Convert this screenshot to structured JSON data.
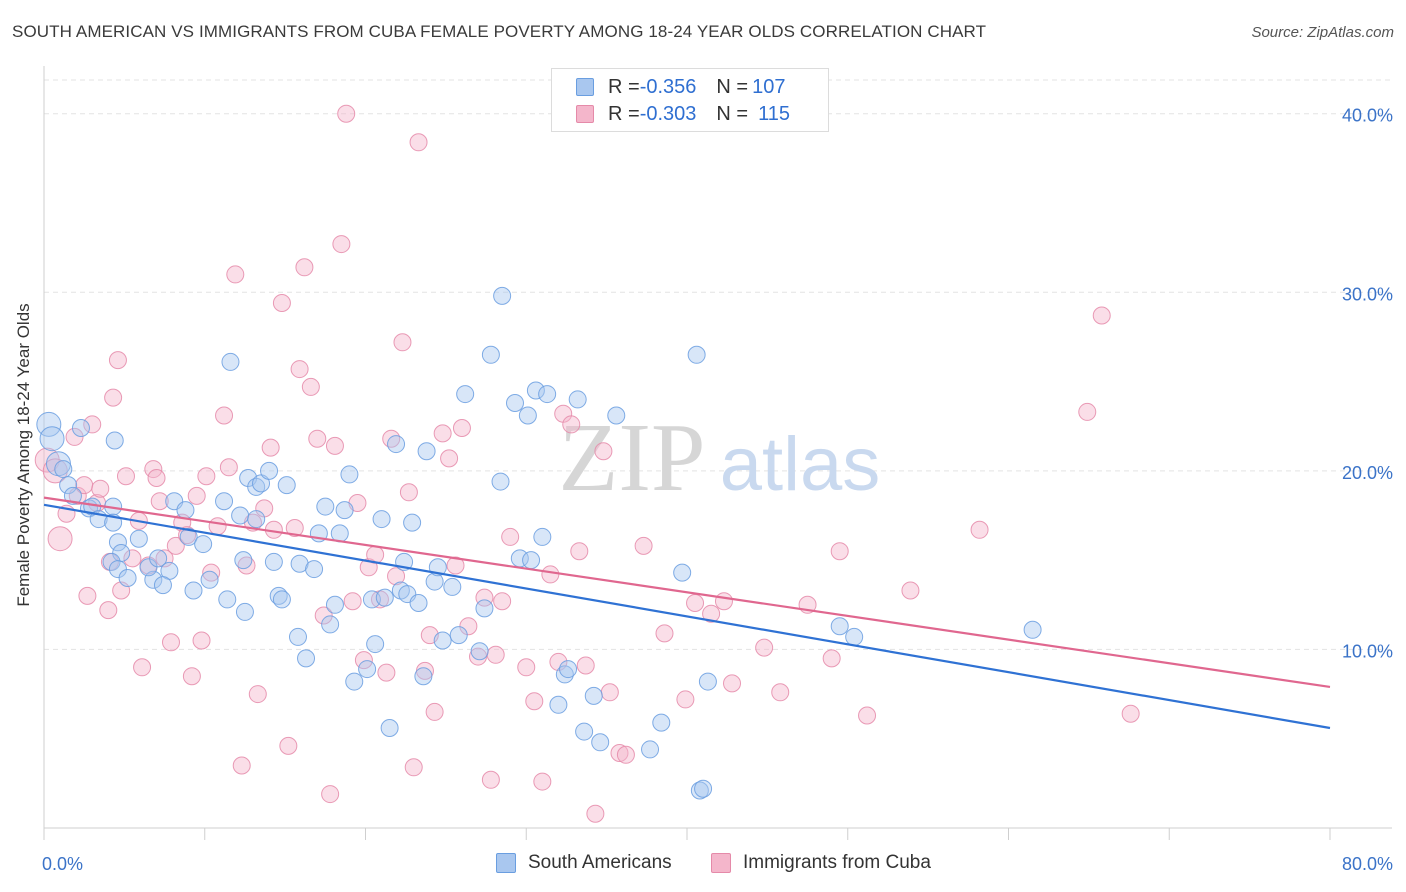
{
  "header": {
    "title": "SOUTH AMERICAN VS IMMIGRANTS FROM CUBA FEMALE POVERTY AMONG 18-24 YEAR OLDS CORRELATION CHART",
    "source": "Source: ZipAtlas.com"
  },
  "legend": {
    "rows": [
      {
        "r_label": "R = ",
        "r_value": "-0.356",
        "n_label": "N = ",
        "n_value": "107"
      },
      {
        "r_label": "R = ",
        "r_value": "-0.303",
        "n_label": "N = ",
        "n_value": "115"
      }
    ]
  },
  "colors": {
    "blue_fill": "#a9c7ef",
    "blue_stroke": "#6a9ee0",
    "blue_line": "#2f72d4",
    "pink_fill": "#f4b6cb",
    "pink_stroke": "#e58aa9",
    "pink_line": "#e0678f",
    "axis_text": "#3b73c8",
    "grid": "#e3e3e3"
  },
  "watermark": {
    "part1": "ZIP",
    "part2": "atlas"
  },
  "chart_data": {
    "type": "scatter",
    "title": "SOUTH AMERICAN VS IMMIGRANTS FROM CUBA FEMALE POVERTY AMONG 18-24 YEAR OLDS CORRELATION CHART",
    "xlabel": "",
    "ylabel": "Female Poverty Among 18-24 Year Olds",
    "xlim": [
      0,
      80
    ],
    "ylim": [
      0,
      42
    ],
    "x_tick_labels": [
      "0.0%",
      "80.0%"
    ],
    "y_ticks": [
      10,
      20,
      30,
      40
    ],
    "y_tick_labels": [
      "10.0%",
      "20.0%",
      "30.0%",
      "40.0%"
    ],
    "grid": true,
    "legend_position": "top-center",
    "series": [
      {
        "name": "South Americans",
        "r": -0.356,
        "n": 107,
        "trend": {
          "x": [
            0,
            80
          ],
          "y": [
            18.1,
            5.6
          ]
        },
        "points": [
          [
            0.3,
            22.6
          ],
          [
            0.5,
            21.8
          ],
          [
            0.9,
            20.4
          ],
          [
            1.2,
            20.1
          ],
          [
            1.5,
            19.2
          ],
          [
            1.8,
            18.6
          ],
          [
            2.3,
            22.4
          ],
          [
            2.8,
            17.9
          ],
          [
            3.0,
            18.0
          ],
          [
            3.4,
            17.3
          ],
          [
            4.4,
            21.7
          ],
          [
            4.3,
            18.0
          ],
          [
            4.3,
            17.1
          ],
          [
            4.6,
            16.0
          ],
          [
            4.8,
            15.4
          ],
          [
            4.2,
            14.9
          ],
          [
            4.6,
            14.5
          ],
          [
            5.2,
            14.0
          ],
          [
            5.9,
            16.2
          ],
          [
            6.8,
            13.9
          ],
          [
            6.5,
            14.6
          ],
          [
            7.1,
            15.1
          ],
          [
            7.8,
            14.4
          ],
          [
            7.4,
            13.6
          ],
          [
            8.1,
            18.3
          ],
          [
            8.8,
            17.8
          ],
          [
            9.0,
            16.3
          ],
          [
            9.3,
            13.3
          ],
          [
            9.9,
            15.9
          ],
          [
            10.3,
            13.9
          ],
          [
            11.2,
            18.3
          ],
          [
            11.4,
            12.8
          ],
          [
            11.6,
            26.1
          ],
          [
            12.2,
            17.5
          ],
          [
            12.4,
            15.0
          ],
          [
            12.5,
            12.1
          ],
          [
            12.7,
            19.6
          ],
          [
            13.2,
            19.1
          ],
          [
            13.2,
            17.3
          ],
          [
            13.5,
            19.3
          ],
          [
            14.0,
            20.0
          ],
          [
            14.3,
            14.9
          ],
          [
            14.6,
            13.0
          ],
          [
            14.8,
            12.8
          ],
          [
            15.1,
            19.2
          ],
          [
            15.8,
            10.7
          ],
          [
            15.9,
            14.8
          ],
          [
            16.3,
            9.5
          ],
          [
            16.8,
            14.5
          ],
          [
            17.1,
            16.5
          ],
          [
            17.5,
            18.0
          ],
          [
            17.8,
            11.4
          ],
          [
            18.1,
            12.5
          ],
          [
            18.4,
            16.5
          ],
          [
            18.7,
            17.8
          ],
          [
            19.0,
            19.8
          ],
          [
            19.3,
            8.2
          ],
          [
            20.1,
            8.9
          ],
          [
            20.4,
            12.8
          ],
          [
            20.6,
            10.3
          ],
          [
            21.0,
            17.3
          ],
          [
            21.2,
            12.9
          ],
          [
            21.5,
            5.6
          ],
          [
            21.9,
            21.5
          ],
          [
            22.2,
            13.3
          ],
          [
            22.4,
            14.9
          ],
          [
            22.6,
            13.1
          ],
          [
            22.9,
            17.1
          ],
          [
            23.3,
            12.6
          ],
          [
            23.6,
            8.5
          ],
          [
            23.8,
            21.1
          ],
          [
            24.3,
            13.8
          ],
          [
            24.5,
            14.6
          ],
          [
            24.8,
            10.5
          ],
          [
            25.4,
            13.5
          ],
          [
            25.8,
            10.8
          ],
          [
            26.2,
            24.3
          ],
          [
            27.1,
            9.9
          ],
          [
            27.4,
            12.3
          ],
          [
            27.8,
            26.5
          ],
          [
            28.4,
            19.4
          ],
          [
            28.5,
            29.8
          ],
          [
            29.3,
            23.8
          ],
          [
            29.6,
            15.1
          ],
          [
            30.1,
            23.1
          ],
          [
            30.3,
            15.0
          ],
          [
            30.6,
            24.5
          ],
          [
            31.0,
            16.3
          ],
          [
            31.3,
            24.3
          ],
          [
            32.0,
            6.9
          ],
          [
            32.4,
            8.6
          ],
          [
            32.6,
            8.9
          ],
          [
            33.2,
            24.0
          ],
          [
            33.6,
            5.4
          ],
          [
            34.2,
            7.4
          ],
          [
            34.6,
            4.8
          ],
          [
            35.6,
            23.1
          ],
          [
            37.7,
            4.4
          ],
          [
            38.4,
            5.9
          ],
          [
            39.7,
            14.3
          ],
          [
            40.6,
            26.5
          ],
          [
            40.8,
            2.1
          ],
          [
            41.0,
            2.2
          ],
          [
            41.3,
            8.2
          ],
          [
            49.5,
            11.3
          ],
          [
            50.4,
            10.7
          ],
          [
            61.5,
            11.1
          ]
        ]
      },
      {
        "name": "Immigrants from Cuba",
        "r": -0.303,
        "n": 115,
        "trend": {
          "x": [
            0,
            80
          ],
          "y": [
            18.5,
            7.9
          ]
        },
        "points": [
          [
            0.2,
            20.6
          ],
          [
            0.7,
            20.0
          ],
          [
            1.0,
            16.2
          ],
          [
            1.4,
            17.6
          ],
          [
            1.9,
            21.9
          ],
          [
            2.1,
            18.6
          ],
          [
            2.5,
            19.2
          ],
          [
            2.7,
            13.0
          ],
          [
            3.0,
            22.6
          ],
          [
            3.3,
            18.2
          ],
          [
            3.5,
            19.0
          ],
          [
            4.0,
            12.2
          ],
          [
            4.1,
            14.9
          ],
          [
            4.3,
            24.1
          ],
          [
            4.6,
            26.2
          ],
          [
            4.8,
            13.3
          ],
          [
            5.1,
            19.7
          ],
          [
            5.5,
            15.1
          ],
          [
            5.9,
            17.2
          ],
          [
            6.1,
            9.0
          ],
          [
            6.5,
            14.7
          ],
          [
            6.8,
            20.1
          ],
          [
            7.0,
            19.6
          ],
          [
            7.2,
            18.3
          ],
          [
            7.5,
            15.1
          ],
          [
            7.9,
            10.4
          ],
          [
            8.2,
            15.8
          ],
          [
            8.6,
            17.1
          ],
          [
            8.9,
            16.4
          ],
          [
            9.2,
            8.5
          ],
          [
            9.5,
            18.6
          ],
          [
            9.8,
            10.5
          ],
          [
            10.1,
            19.7
          ],
          [
            10.4,
            14.3
          ],
          [
            10.8,
            16.9
          ],
          [
            11.2,
            23.1
          ],
          [
            11.5,
            20.2
          ],
          [
            11.9,
            31.0
          ],
          [
            12.3,
            3.5
          ],
          [
            12.6,
            14.7
          ],
          [
            13.0,
            17.1
          ],
          [
            13.3,
            7.5
          ],
          [
            13.7,
            17.9
          ],
          [
            14.1,
            21.3
          ],
          [
            14.3,
            16.7
          ],
          [
            14.8,
            29.4
          ],
          [
            15.2,
            4.6
          ],
          [
            15.6,
            16.8
          ],
          [
            15.9,
            25.7
          ],
          [
            16.2,
            31.4
          ],
          [
            16.6,
            24.7
          ],
          [
            17.0,
            21.8
          ],
          [
            17.4,
            11.9
          ],
          [
            17.8,
            1.9
          ],
          [
            18.1,
            21.4
          ],
          [
            18.5,
            32.7
          ],
          [
            18.8,
            40.0
          ],
          [
            19.2,
            12.7
          ],
          [
            19.5,
            18.2
          ],
          [
            19.9,
            9.4
          ],
          [
            20.2,
            14.6
          ],
          [
            20.6,
            15.3
          ],
          [
            20.9,
            12.8
          ],
          [
            21.3,
            8.7
          ],
          [
            21.6,
            21.8
          ],
          [
            21.9,
            14.1
          ],
          [
            22.3,
            27.2
          ],
          [
            22.7,
            18.8
          ],
          [
            23.0,
            3.4
          ],
          [
            23.3,
            38.4
          ],
          [
            23.7,
            8.8
          ],
          [
            24.0,
            10.8
          ],
          [
            24.3,
            6.5
          ],
          [
            24.8,
            22.1
          ],
          [
            25.2,
            20.7
          ],
          [
            25.6,
            14.7
          ],
          [
            26.0,
            22.4
          ],
          [
            26.4,
            11.3
          ],
          [
            27.0,
            9.6
          ],
          [
            27.4,
            12.9
          ],
          [
            27.8,
            2.7
          ],
          [
            28.1,
            9.7
          ],
          [
            28.5,
            12.7
          ],
          [
            29.0,
            16.3
          ],
          [
            30.0,
            9.0
          ],
          [
            30.5,
            7.1
          ],
          [
            31.0,
            2.6
          ],
          [
            31.5,
            14.2
          ],
          [
            32.0,
            9.3
          ],
          [
            32.3,
            23.2
          ],
          [
            32.8,
            22.6
          ],
          [
            33.3,
            15.5
          ],
          [
            33.7,
            9.1
          ],
          [
            34.3,
            0.8
          ],
          [
            34.8,
            21.1
          ],
          [
            35.2,
            7.6
          ],
          [
            35.8,
            4.2
          ],
          [
            36.2,
            4.1
          ],
          [
            37.3,
            15.8
          ],
          [
            38.6,
            10.9
          ],
          [
            39.9,
            7.2
          ],
          [
            40.5,
            12.6
          ],
          [
            41.5,
            12.0
          ],
          [
            42.3,
            12.7
          ],
          [
            42.8,
            8.1
          ],
          [
            44.8,
            10.1
          ],
          [
            45.8,
            7.6
          ],
          [
            47.5,
            12.5
          ],
          [
            49.0,
            9.5
          ],
          [
            49.5,
            15.5
          ],
          [
            51.2,
            6.3
          ],
          [
            53.9,
            13.3
          ],
          [
            58.2,
            16.7
          ],
          [
            64.9,
            23.3
          ],
          [
            65.8,
            28.7
          ],
          [
            67.6,
            6.4
          ]
        ]
      }
    ]
  }
}
